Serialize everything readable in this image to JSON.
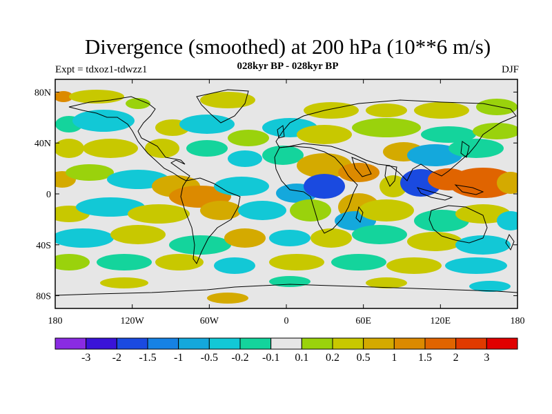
{
  "title": "Divergence (smoothed) at 200 hPa (10**6 m/s)",
  "experiment": "Expt = tdxoz1-tdwzz1",
  "period": "028kyr BP - 028kyr BP",
  "season": "DJF",
  "map": {
    "projection": "cylindrical equidistant",
    "lon_range": [
      -180,
      180
    ],
    "lat_range": [
      -90,
      90
    ],
    "lat_ticks": [
      {
        "value": 80,
        "label": "80N"
      },
      {
        "value": 40,
        "label": "40N"
      },
      {
        "value": 0,
        "label": "0"
      },
      {
        "value": -40,
        "label": "40S"
      },
      {
        "value": -80,
        "label": "80S"
      }
    ],
    "lon_ticks": [
      {
        "value": -180,
        "label": "180"
      },
      {
        "value": -120,
        "label": "120W"
      },
      {
        "value": -60,
        "label": "60W"
      },
      {
        "value": 0,
        "label": "0"
      },
      {
        "value": 60,
        "label": "60E"
      },
      {
        "value": 120,
        "label": "120E"
      },
      {
        "value": 180,
        "label": "180"
      }
    ],
    "background_color": "#e6e6e6"
  },
  "colorbar": {
    "colors": [
      "#8a2be2",
      "#3a13d8",
      "#1a4ae0",
      "#1682e4",
      "#14a8dc",
      "#12c8d6",
      "#14d49c",
      "#e6e6e6",
      "#9ad20c",
      "#c8c800",
      "#d4aa00",
      "#dc8a00",
      "#e06400",
      "#e03a00",
      "#e00000"
    ],
    "labels": [
      "-3",
      "-2",
      "-1.5",
      "-1",
      "-0.5",
      "-0.2",
      "-0.1",
      "0.1",
      "0.2",
      "0.5",
      "1",
      "1.5",
      "2",
      "3"
    ]
  }
}
